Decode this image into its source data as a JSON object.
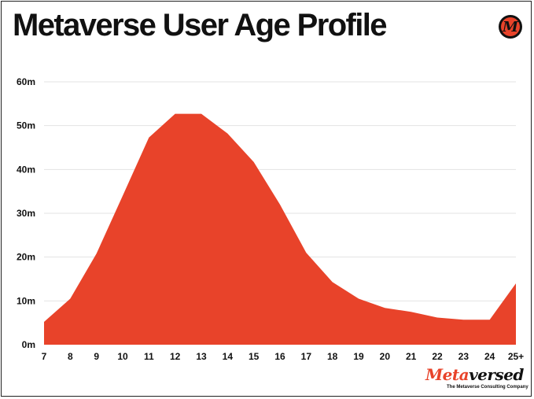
{
  "header": {
    "title": "Metaverse User Age Profile",
    "badge_letter": "M",
    "badge_icon": "logo-badge-icon"
  },
  "brand": {
    "name_part1": "Meta",
    "name_part2": "versed",
    "tagline": "The Metaverse Consulting Company",
    "accent_color": "#e8432a"
  },
  "chart_data": {
    "type": "area",
    "title": "Metaverse User Age Profile",
    "xlabel": "",
    "ylabel": "",
    "categories": [
      "7",
      "8",
      "9",
      "10",
      "11",
      "12",
      "13",
      "14",
      "15",
      "16",
      "17",
      "18",
      "19",
      "20",
      "21",
      "22",
      "23",
      "24",
      "25+"
    ],
    "values": [
      5.2,
      10.5,
      20.8,
      34,
      47.3,
      52.7,
      52.7,
      48.2,
      41.7,
      32,
      21,
      14.3,
      10.5,
      8.4,
      7.5,
      6.2,
      5.7,
      5.7,
      14
    ],
    "ylim": [
      0,
      60
    ],
    "yticks": [
      0,
      10,
      20,
      30,
      40,
      50,
      60
    ],
    "ytick_labels": [
      "0m",
      "10m",
      "20m",
      "30m",
      "40m",
      "50m",
      "60m"
    ],
    "color": "#e8432a",
    "grid": true
  }
}
